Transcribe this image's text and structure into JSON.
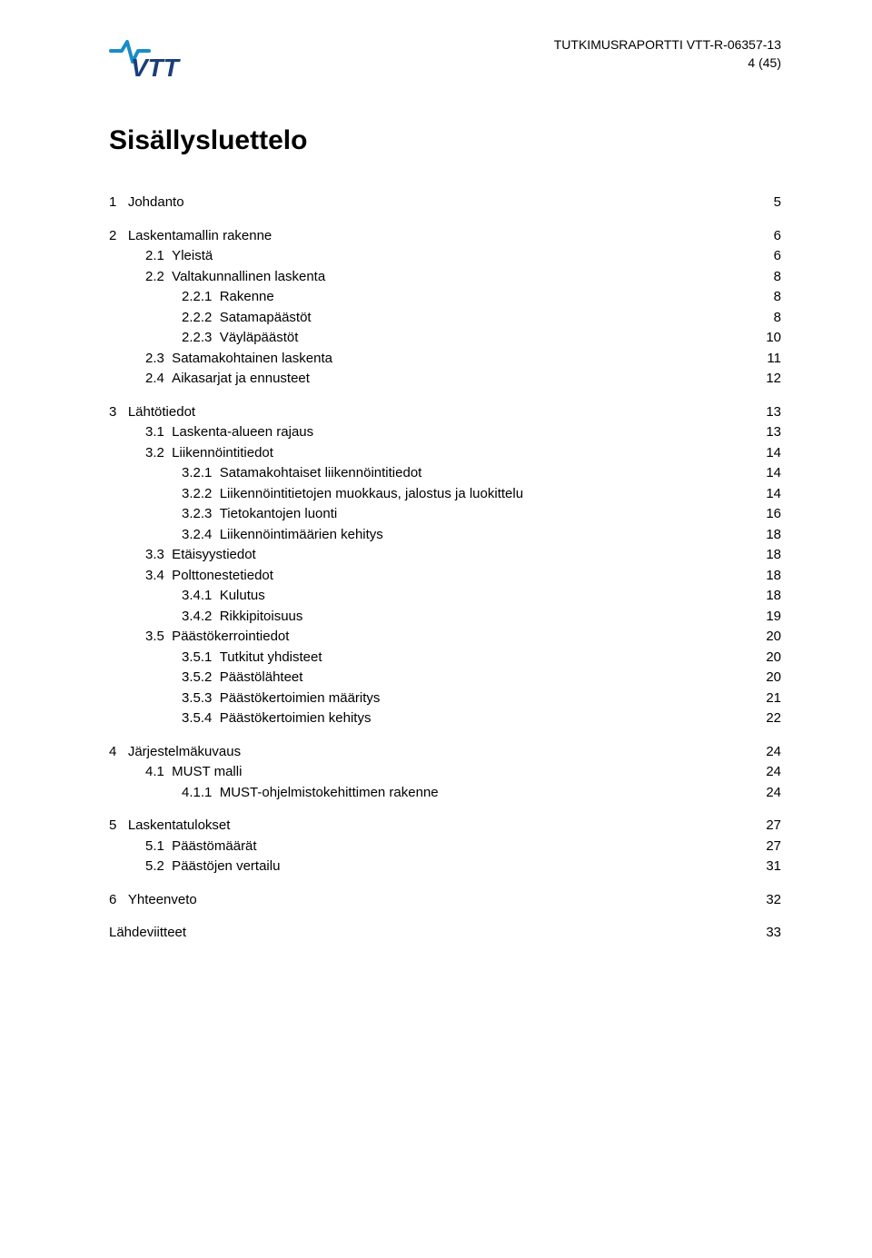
{
  "header": {
    "line1": "TUTKIMUSRAPORTTI  VTT-R-06357-13",
    "line2": "4 (45)"
  },
  "logo": {
    "text": "VTT",
    "wave_stroke": "#1a8cc8",
    "text_fill": "#1a3e7a"
  },
  "title": "Sisällysluettelo",
  "toc": [
    {
      "level": 1,
      "num": "1",
      "text": "Johdanto",
      "page": "5"
    },
    {
      "level": 1,
      "num": "2",
      "text": "Laskentamallin rakenne",
      "page": "6"
    },
    {
      "level": 2,
      "num": "2.1",
      "text": "Yleistä",
      "page": "6"
    },
    {
      "level": 2,
      "num": "2.2",
      "text": "Valtakunnallinen laskenta",
      "page": "8"
    },
    {
      "level": 3,
      "num": "2.2.1",
      "text": "Rakenne",
      "page": "8"
    },
    {
      "level": 3,
      "num": "2.2.2",
      "text": "Satamapäästöt",
      "page": "8"
    },
    {
      "level": 3,
      "num": "2.2.3",
      "text": "Väyläpäästöt",
      "page": "10"
    },
    {
      "level": 2,
      "num": "2.3",
      "text": "Satamakohtainen laskenta",
      "page": "11"
    },
    {
      "level": 2,
      "num": "2.4",
      "text": "Aikasarjat ja ennusteet",
      "page": "12"
    },
    {
      "level": 1,
      "num": "3",
      "text": "Lähtötiedot",
      "page": "13"
    },
    {
      "level": 2,
      "num": "3.1",
      "text": "Laskenta-alueen rajaus",
      "page": "13"
    },
    {
      "level": 2,
      "num": "3.2",
      "text": "Liikennöintitiedot",
      "page": "14"
    },
    {
      "level": 3,
      "num": "3.2.1",
      "text": "Satamakohtaiset liikennöintitiedot",
      "page": "14"
    },
    {
      "level": 3,
      "num": "3.2.2",
      "text": "Liikennöintitietojen muokkaus, jalostus ja luokittelu",
      "page": "14"
    },
    {
      "level": 3,
      "num": "3.2.3",
      "text": "Tietokantojen luonti",
      "page": "16"
    },
    {
      "level": 3,
      "num": "3.2.4",
      "text": "Liikennöintimäärien kehitys",
      "page": "18"
    },
    {
      "level": 2,
      "num": "3.3",
      "text": "Etäisyystiedot",
      "page": "18"
    },
    {
      "level": 2,
      "num": "3.4",
      "text": "Polttonestetiedot",
      "page": "18"
    },
    {
      "level": 3,
      "num": "3.4.1",
      "text": "Kulutus",
      "page": "18"
    },
    {
      "level": 3,
      "num": "3.4.2",
      "text": "Rikkipitoisuus",
      "page": "19"
    },
    {
      "level": 2,
      "num": "3.5",
      "text": "Päästökerrointiedot",
      "page": "20"
    },
    {
      "level": 3,
      "num": "3.5.1",
      "text": "Tutkitut yhdisteet",
      "page": "20"
    },
    {
      "level": 3,
      "num": "3.5.2",
      "text": "Päästölähteet",
      "page": "20"
    },
    {
      "level": 3,
      "num": "3.5.3",
      "text": "Päästökertoimien määritys",
      "page": "21"
    },
    {
      "level": 3,
      "num": "3.5.4",
      "text": "Päästökertoimien kehitys",
      "page": "22"
    },
    {
      "level": 1,
      "num": "4",
      "text": "Järjestelmäkuvaus",
      "page": "24"
    },
    {
      "level": 2,
      "num": "4.1",
      "text": "MUST malli",
      "page": "24"
    },
    {
      "level": 3,
      "num": "4.1.1",
      "text": "MUST-ohjelmistokehittimen rakenne",
      "page": "24"
    },
    {
      "level": 1,
      "num": "5",
      "text": "Laskentatulokset",
      "page": "27"
    },
    {
      "level": 2,
      "num": "5.1",
      "text": "Päästömäärät",
      "page": "27"
    },
    {
      "level": 2,
      "num": "5.2",
      "text": "Päästöjen vertailu",
      "page": "31"
    },
    {
      "level": 1,
      "num": "6",
      "text": "Yhteenveto",
      "page": "32"
    },
    {
      "level": 1,
      "num": "",
      "text": "Lähdeviitteet",
      "page": "33",
      "final": true
    }
  ]
}
